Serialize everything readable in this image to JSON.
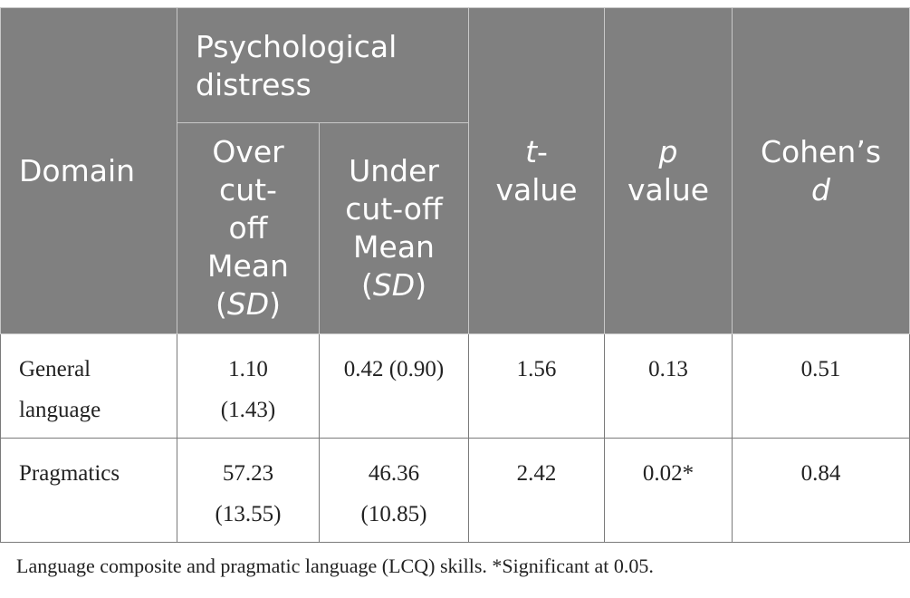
{
  "table": {
    "header": {
      "domain": "Domain",
      "group": "Psychological distress",
      "over": [
        "Over",
        "cut-",
        "off",
        "Mean"
      ],
      "under": [
        "Under",
        "cut-off",
        "Mean"
      ],
      "sd_open": "(",
      "sd": "SD",
      "sd_close": ")",
      "t_italic": "t",
      "t_dash": "-",
      "t_value": "value",
      "p_italic": "p",
      "p_value": "value",
      "cohen": "Cohen’s",
      "cohen_d": "d"
    },
    "rows": [
      {
        "domain": [
          "General",
          "language"
        ],
        "over": [
          "1.10",
          "(1.43)"
        ],
        "under": [
          "0.42 (0.90)"
        ],
        "t": "1.56",
        "p": "0.13",
        "d": "0.51"
      },
      {
        "domain": [
          "Pragmatics"
        ],
        "over": [
          "57.23",
          "(13.55)"
        ],
        "under": [
          "46.36",
          "(10.85)"
        ],
        "t": "2.42",
        "p": "0.02*",
        "d": "0.84"
      }
    ]
  },
  "caption": "Language composite and pragmatic language (LCQ) skills. *Significant at 0.05."
}
